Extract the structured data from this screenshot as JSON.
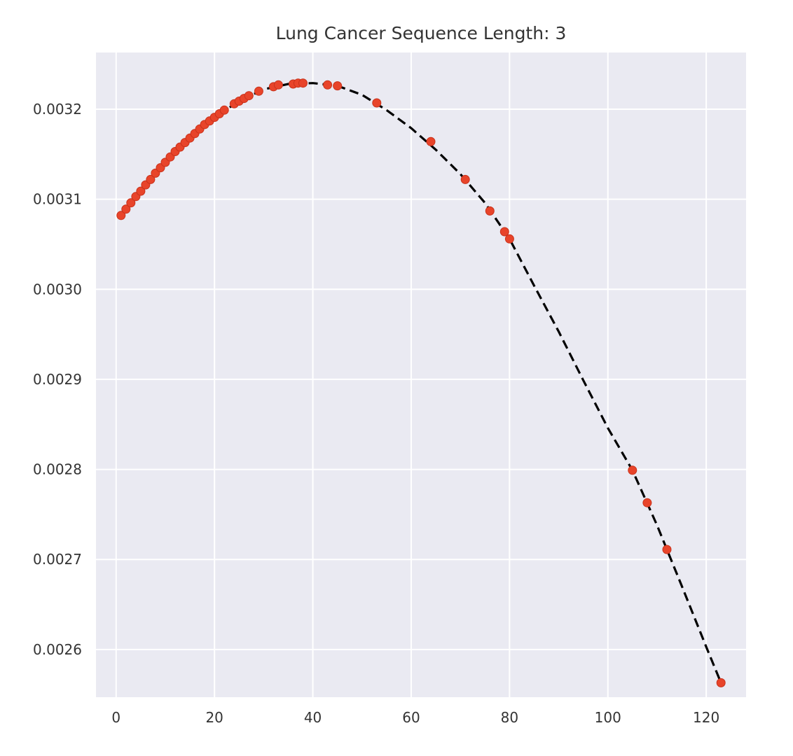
{
  "chart_data": {
    "type": "scatter",
    "title": "Lung Cancer Sequence Length: 3",
    "xlabel": "",
    "ylabel": "",
    "xlim": [
      -4.1,
      128.1
    ],
    "ylim": [
      0.002547,
      0.003263
    ],
    "x_ticks": [
      0,
      20,
      40,
      60,
      80,
      100,
      120
    ],
    "x_tick_labels": [
      "0",
      "20",
      "40",
      "60",
      "80",
      "100",
      "120"
    ],
    "y_ticks": [
      0.0026,
      0.0027,
      0.0028,
      0.0029,
      0.003,
      0.0031,
      0.0032
    ],
    "y_tick_labels": [
      "0.0026",
      "0.0027",
      "0.0028",
      "0.0029",
      "0.0030",
      "0.0031",
      "0.0032"
    ],
    "grid": true,
    "colors": {
      "plot_background": "#eaeaf2",
      "grid": "#ffffff",
      "points": "#e8442a",
      "fit_line": "#000000"
    },
    "series": [
      {
        "kind": "points",
        "x": [
          1,
          2,
          3,
          4,
          5,
          6,
          7,
          8,
          9,
          10,
          11,
          12,
          13,
          14,
          15,
          16,
          17,
          18,
          19,
          20,
          21,
          22,
          24,
          25,
          26,
          27,
          29,
          32,
          33,
          36,
          37,
          38,
          43,
          45,
          53,
          64,
          71,
          76,
          79,
          80,
          105,
          108,
          112,
          123
        ],
        "y": [
          0.003082,
          0.003089,
          0.003096,
          0.003103,
          0.003109,
          0.003116,
          0.003122,
          0.003129,
          0.003135,
          0.003141,
          0.003147,
          0.003153,
          0.003158,
          0.003163,
          0.003168,
          0.003173,
          0.003178,
          0.003183,
          0.003187,
          0.003191,
          0.003195,
          0.003199,
          0.003206,
          0.003209,
          0.003212,
          0.003215,
          0.00322,
          0.003225,
          0.003227,
          0.003228,
          0.003229,
          0.003229,
          0.003227,
          0.003226,
          0.003207,
          0.003164,
          0.003122,
          0.003087,
          0.003064,
          0.003056,
          0.002799,
          0.002763,
          0.002711,
          0.002563
        ]
      },
      {
        "kind": "fit_line",
        "x": [
          1,
          5,
          10,
          15,
          20,
          25,
          30,
          35,
          40,
          45,
          50,
          55,
          60,
          65,
          70,
          75,
          80,
          85,
          90,
          95,
          100,
          105,
          110,
          115,
          120,
          123
        ],
        "y": [
          0.003082,
          0.003109,
          0.003141,
          0.003168,
          0.003191,
          0.003209,
          0.003222,
          0.003228,
          0.003229,
          0.003226,
          0.003216,
          0.003199,
          0.003179,
          0.003155,
          0.003128,
          0.003096,
          0.003056,
          0.003004,
          0.002953,
          0.002899,
          0.002846,
          0.002799,
          0.002738,
          0.002671,
          0.002603,
          0.002563
        ]
      }
    ]
  }
}
